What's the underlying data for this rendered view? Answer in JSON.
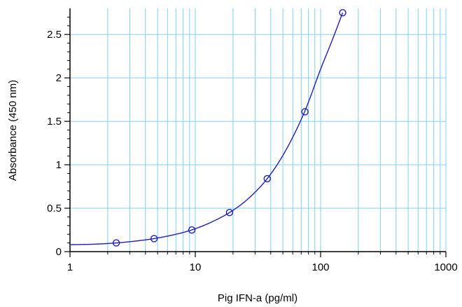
{
  "chart_data": {
    "type": "scatter",
    "title": "",
    "xlabel": "Pig IFN-a (pg/ml)",
    "ylabel": "Absorbance (450 nm)",
    "x_scale": "log",
    "xlim": [
      1,
      1000
    ],
    "ylim": [
      0,
      2.8
    ],
    "x_ticks": [
      1,
      10,
      100,
      1000
    ],
    "x_tick_labels": [
      "1",
      "10",
      "100",
      "1000"
    ],
    "y_ticks": [
      0,
      0.5,
      1,
      1.5,
      2,
      2.5
    ],
    "y_tick_labels": [
      "0",
      "0.5",
      "1",
      "1.5",
      "2",
      "2.5"
    ],
    "grid": true,
    "colors": {
      "series": "#1f1fbf",
      "grid": "#7fd0f0",
      "axis": "#000000"
    },
    "series": [
      {
        "marker": "open-circle",
        "x": [
          2.34,
          4.69,
          9.38,
          18.75,
          37.5,
          75,
          150
        ],
        "y": [
          0.1,
          0.15,
          0.25,
          0.45,
          0.84,
          1.61,
          2.75
        ]
      }
    ],
    "fit_curve": {
      "type": "smooth-fit",
      "x": [
        1,
        1.5,
        2.34,
        3.5,
        4.69,
        7,
        9.38,
        13,
        18.75,
        26,
        37.5,
        52,
        75,
        100,
        125,
        150
      ],
      "y": [
        0.08,
        0.085,
        0.1,
        0.125,
        0.15,
        0.2,
        0.25,
        0.33,
        0.45,
        0.6,
        0.84,
        1.15,
        1.62,
        2.1,
        2.45,
        2.75
      ]
    }
  }
}
